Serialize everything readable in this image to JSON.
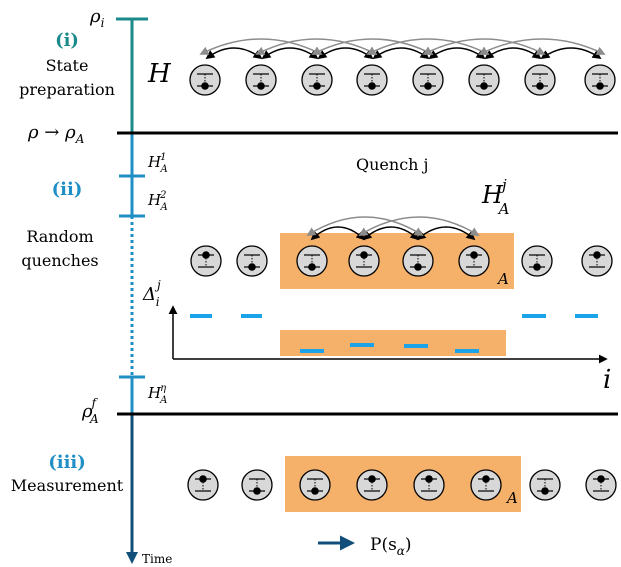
{
  "timeline": {
    "rho_i": "ρ",
    "rho_i_sub": "i",
    "rho_to": "ρ → ρ",
    "rho_to_sub": "A",
    "rho_f": "ρ",
    "rho_f_sup": "f",
    "rho_f_sub": "A",
    "time_label": "Time"
  },
  "stages": {
    "i_tag": "(i)",
    "i_line1": "State",
    "i_line2": "preparation",
    "ii_tag": "(ii)",
    "ii_line1": "Random",
    "ii_line2": "quenches",
    "iii_tag": "(iii)",
    "iii_line1": "Measurement"
  },
  "hamiltonians": {
    "H": "H",
    "HA": "H",
    "HA_sub": "A",
    "HA1_sup": "1",
    "HA2_sup": "2",
    "HAeta_sup": "η",
    "HAj_sup": "j"
  },
  "quench": {
    "title": "Quench j",
    "region_label": "A",
    "delta": "Δ",
    "delta_sub": "i",
    "delta_sup": "j",
    "axis_label": "i"
  },
  "measurement": {
    "region_label": "A",
    "prob": "P(s",
    "prob_sub": "α",
    "prob_close": ")"
  },
  "colors": {
    "teal": "#1a8a8a",
    "blue": "#1f8fc6",
    "dark_blue": "#114e7a",
    "orange": "#f5b069",
    "dash_blue": "#1aa3e8"
  }
}
